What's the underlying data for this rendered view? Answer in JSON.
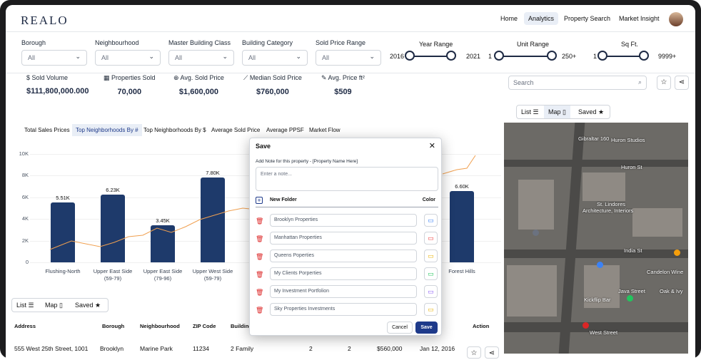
{
  "brand": "REALO",
  "nav": [
    "Home",
    "Analytics",
    "Property Search",
    "Market Insight"
  ],
  "filters": {
    "selects": [
      {
        "label": "Borough",
        "value": "All"
      },
      {
        "label": "Neighbourhood",
        "value": "All"
      },
      {
        "label": "Master Building Class",
        "value": "All"
      },
      {
        "label": "Building Category",
        "value": "All"
      },
      {
        "label": "Sold Price Range",
        "value": "All"
      }
    ],
    "year": {
      "label": "Year Range",
      "min": "2016",
      "max": "2021"
    },
    "unit": {
      "label": "Unit Range",
      "min": "1",
      "max": "250+"
    },
    "sqft": {
      "label": "Sq Ft.",
      "min": "1",
      "max": "9999+"
    }
  },
  "stats": [
    {
      "icon": "dollar-icon",
      "title": "Sold Volume",
      "value": "$111,800,000.000"
    },
    {
      "icon": "building-icon",
      "title": "Properties Sold",
      "value": "70,000"
    },
    {
      "icon": "price-tag-icon",
      "title": "Avg. Sold Price",
      "value": "$1,600,000"
    },
    {
      "icon": "chart-icon",
      "title": "Median Sold Price",
      "value": "$760,000"
    },
    {
      "icon": "pen-icon",
      "title": "Avg. Price ft²",
      "value": "$509"
    }
  ],
  "tabs": [
    "Total Sales Prices",
    "Top Neighborhoods By #",
    "Top Neighborhoods By $",
    "Average Sold Price",
    "Average PPSF",
    "Market Flow"
  ],
  "chart_data": {
    "type": "bar",
    "yticks": [
      "0",
      "2K",
      "4K",
      "6K",
      "8K",
      "10K"
    ],
    "ylim": [
      0,
      10000
    ],
    "categories": [
      "Flushing-North",
      "Upper East Side (59-79)",
      "Upper East Side (79-96)",
      "Upper West Side (59-79)",
      "Forest Hills"
    ],
    "category_lines": [
      [
        "Flushing-North"
      ],
      [
        "Upper East Side",
        "(59-79)"
      ],
      [
        "Upper East Side",
        "(79-96)"
      ],
      [
        "Upper West Side",
        "(59-79)"
      ],
      [
        "Forest Hills"
      ]
    ],
    "values": [
      5510,
      6230,
      3450,
      7800,
      6600
    ],
    "labels": [
      "5.51K",
      "6.23K",
      "3.45K",
      "7.80K",
      "6.60K"
    ],
    "line_color": "#f0a050",
    "bar_color": "#1e3a6b"
  },
  "list_toolbar": {
    "list": "List",
    "map": "Map",
    "saved": "Saved"
  },
  "table": {
    "headers": [
      "Address",
      "Borough",
      "Neighbourhood",
      "ZIP Code",
      "Building C",
      "Action"
    ],
    "row": {
      "address": "555 West 25th Street, 1001",
      "borough": "Brooklyn",
      "neighbourhood": "Marine Park",
      "zip": "11234",
      "bclass": "2 Family",
      "c1": "2",
      "c2": "2",
      "price": "$560,000",
      "date": "Jan 12, 2016"
    }
  },
  "search": {
    "placeholder": "Search"
  },
  "map": {
    "labels": [
      "Gibraltar 160",
      "Huron Studios",
      "Huron St",
      "St. Lindores",
      "Architecture, Interiors",
      "India St",
      "Java Street",
      "Candelon Wine",
      "Oak & Ivy",
      "Kickflip Bar",
      "West Street",
      "West St",
      "West St",
      "Java St",
      "India St",
      "Huron St"
    ]
  },
  "modal": {
    "title": "Save",
    "subtitle": "Add Note for this property - [Property Name Here]",
    "note_placeholder": "Enter a note...",
    "new_folder": "New Folder",
    "color": "Color",
    "folders": [
      {
        "name": "Brooklyn Properties",
        "color": "#3b82f6"
      },
      {
        "name": "Manhattan Properties",
        "color": "#ef4444"
      },
      {
        "name": "Queens Poperties",
        "color": "#eab308"
      },
      {
        "name": "My Clients Porperties",
        "color": "#22c55e"
      },
      {
        "name": "My Investment Portfolion",
        "color": "#8b5cf6"
      },
      {
        "name": "Sky Properties Investments",
        "color": "#eab308"
      }
    ],
    "cancel": "Cancel",
    "save": "Save"
  }
}
